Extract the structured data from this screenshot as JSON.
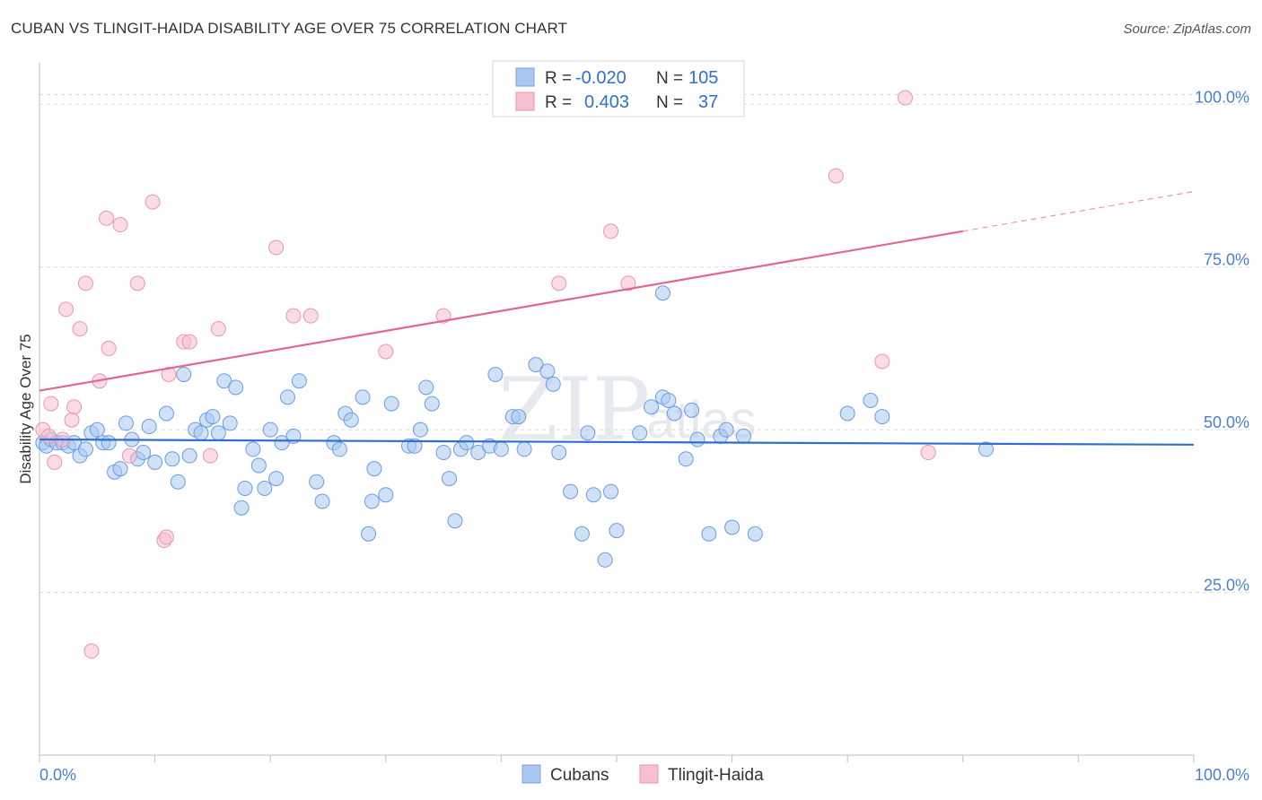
{
  "header": {
    "title": "CUBAN VS TLINGIT-HAIDA DISABILITY AGE OVER 75 CORRELATION CHART",
    "source": "Source: ZipAtlas.com"
  },
  "watermark": {
    "zip": "ZIP",
    "atlas": "atlas"
  },
  "legend": {
    "rows": [
      {
        "r_label": "R =",
        "r_value": "-0.020",
        "n_label": "N =",
        "n_value": "105",
        "color": "#a9c8f0",
        "stroke": "#7aa3d8"
      },
      {
        "r_label": "R =",
        "r_value": "0.403",
        "n_label": "N =",
        "n_value": "37",
        "color": "#f7c0d0",
        "stroke": "#e896b0"
      }
    ]
  },
  "bottom_legend": {
    "series1": "Cubans",
    "series2": "Tlingit-Haida"
  },
  "chart_data": {
    "type": "scatter",
    "title": "CUBAN VS TLINGIT-HAIDA DISABILITY AGE OVER 75 CORRELATION CHART",
    "xlabel": "",
    "ylabel": "Disability Age Over 75",
    "xlim": [
      0,
      100
    ],
    "ylim": [
      0,
      105
    ],
    "x_tick_labels": [
      "0.0%",
      "100.0%"
    ],
    "y_ticks": [
      25,
      50,
      75,
      100
    ],
    "y_tick_labels": [
      "25.0%",
      "50.0%",
      "75.0%",
      "100.0%"
    ],
    "grid": true,
    "series": [
      {
        "name": "Cubans",
        "color": "#a9c8f0",
        "stroke": "#6b9be0",
        "line_color": "#2f6fd0",
        "trend": {
          "x": [
            0,
            100
          ],
          "y": [
            48.5,
            47.7
          ]
        },
        "points": [
          [
            0.3,
            48
          ],
          [
            0.6,
            47.5
          ],
          [
            1,
            48.5
          ],
          [
            1.5,
            48
          ],
          [
            2,
            48
          ],
          [
            2.5,
            47.5
          ],
          [
            3,
            48
          ],
          [
            3.5,
            46
          ],
          [
            4,
            47
          ],
          [
            4.5,
            49.5
          ],
          [
            5,
            50
          ],
          [
            5.5,
            48
          ],
          [
            6,
            48
          ],
          [
            6.5,
            43.5
          ],
          [
            7,
            44
          ],
          [
            7.5,
            51
          ],
          [
            8,
            48.5
          ],
          [
            8.5,
            45.5
          ],
          [
            9,
            46.5
          ],
          [
            9.5,
            50.5
          ],
          [
            10,
            45
          ],
          [
            11,
            52.5
          ],
          [
            11.5,
            45.5
          ],
          [
            12,
            42
          ],
          [
            12.5,
            58.5
          ],
          [
            13,
            46
          ],
          [
            13.5,
            50
          ],
          [
            14,
            49.5
          ],
          [
            14.5,
            51.5
          ],
          [
            15,
            52
          ],
          [
            15.5,
            49.5
          ],
          [
            16,
            57.5
          ],
          [
            16.5,
            51
          ],
          [
            17,
            56.5
          ],
          [
            17.5,
            38
          ],
          [
            17.8,
            41
          ],
          [
            18.5,
            47
          ],
          [
            19,
            44.5
          ],
          [
            19.5,
            41
          ],
          [
            20,
            50
          ],
          [
            20.5,
            42.5
          ],
          [
            21,
            48
          ],
          [
            21.5,
            55
          ],
          [
            22,
            49
          ],
          [
            22.5,
            57.5
          ],
          [
            24,
            42
          ],
          [
            24.5,
            39
          ],
          [
            25.5,
            48
          ],
          [
            26,
            47
          ],
          [
            26.5,
            52.5
          ],
          [
            27,
            51.5
          ],
          [
            28,
            55
          ],
          [
            28.5,
            34
          ],
          [
            28.8,
            39
          ],
          [
            29,
            44
          ],
          [
            30,
            40
          ],
          [
            30.5,
            54
          ],
          [
            32,
            47.5
          ],
          [
            32.5,
            47.5
          ],
          [
            33,
            50
          ],
          [
            33.5,
            56.5
          ],
          [
            34,
            54
          ],
          [
            35,
            46.5
          ],
          [
            35.5,
            42.5
          ],
          [
            36,
            36
          ],
          [
            36.5,
            47
          ],
          [
            37,
            48
          ],
          [
            38,
            46.5
          ],
          [
            39,
            47.5
          ],
          [
            39.5,
            58.5
          ],
          [
            40,
            47
          ],
          [
            41,
            52
          ],
          [
            41.5,
            52
          ],
          [
            42,
            47
          ],
          [
            43,
            60
          ],
          [
            44,
            59
          ],
          [
            44.5,
            57
          ],
          [
            45,
            46.5
          ],
          [
            46,
            40.5
          ],
          [
            47,
            34
          ],
          [
            47.5,
            49.5
          ],
          [
            48,
            40
          ],
          [
            49,
            30
          ],
          [
            49.5,
            40.5
          ],
          [
            50,
            34.5
          ],
          [
            52,
            49.5
          ],
          [
            53,
            53.5
          ],
          [
            54,
            55
          ],
          [
            54.5,
            54.5
          ],
          [
            55,
            52.5
          ],
          [
            56,
            45.5
          ],
          [
            56.5,
            53
          ],
          [
            57,
            48.5
          ],
          [
            58,
            34
          ],
          [
            59,
            49
          ],
          [
            59.5,
            50
          ],
          [
            60,
            35
          ],
          [
            61,
            49
          ],
          [
            62,
            34
          ],
          [
            70,
            52.5
          ],
          [
            72,
            54.5
          ],
          [
            73,
            52
          ],
          [
            82,
            47
          ],
          [
            54,
            71
          ]
        ]
      },
      {
        "name": "Tlingit-Haida",
        "color": "#f7c0d0",
        "stroke": "#e896b0",
        "line_color": "#e3668e",
        "trend": {
          "x": [
            0,
            80
          ],
          "y": [
            56,
            80.5
          ]
        },
        "trend_dashed": {
          "x": [
            80,
            100
          ],
          "y": [
            80.5,
            86.6
          ]
        },
        "points": [
          [
            0.3,
            50
          ],
          [
            0.8,
            49
          ],
          [
            1,
            54
          ],
          [
            1.3,
            45
          ],
          [
            2,
            48.5
          ],
          [
            2.3,
            68.5
          ],
          [
            2.8,
            51.5
          ],
          [
            3,
            53.5
          ],
          [
            3.5,
            65.5
          ],
          [
            4,
            72.5
          ],
          [
            5.2,
            57.5
          ],
          [
            5.8,
            82.5
          ],
          [
            6,
            62.5
          ],
          [
            7,
            81.5
          ],
          [
            7.8,
            46
          ],
          [
            8.5,
            72.5
          ],
          [
            9.8,
            85
          ],
          [
            10.8,
            33
          ],
          [
            11,
            33.5
          ],
          [
            11.2,
            58.5
          ],
          [
            12.5,
            63.5
          ],
          [
            13,
            63.5
          ],
          [
            14.8,
            46
          ],
          [
            15.5,
            65.5
          ],
          [
            20.5,
            78
          ],
          [
            22,
            67.5
          ],
          [
            23.5,
            67.5
          ],
          [
            30,
            62
          ],
          [
            35,
            67.5
          ],
          [
            45,
            72.5
          ],
          [
            49.5,
            80.5
          ],
          [
            51,
            72.5
          ],
          [
            69,
            89
          ],
          [
            73,
            60.5
          ],
          [
            75,
            101
          ],
          [
            77,
            46.5
          ],
          [
            4.5,
            16
          ]
        ]
      }
    ]
  }
}
